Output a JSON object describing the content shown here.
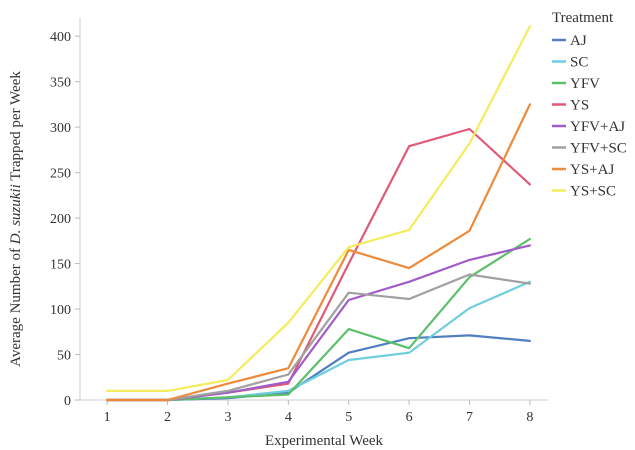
{
  "chart_data": {
    "type": "line",
    "title": "",
    "xlabel": "Experimental Week",
    "ylabel_parts": [
      "Average Number of ",
      "D. suzukii",
      " Trapped per Week"
    ],
    "x": [
      1,
      2,
      3,
      4,
      5,
      6,
      7,
      8
    ],
    "xlim": [
      0.55,
      8.3
    ],
    "ylim": [
      0,
      420
    ],
    "yticks": [
      0,
      50,
      100,
      150,
      200,
      250,
      300,
      350,
      400
    ],
    "grid": false,
    "legend": {
      "title": "Treatment",
      "placement": "right"
    },
    "series": [
      {
        "name": "AJ",
        "color": "#4f7fbf",
        "values": [
          0,
          0,
          2,
          8,
          52,
          68,
          71,
          65
        ]
      },
      {
        "name": "SC",
        "color": "#6fcde0",
        "values": [
          0,
          0,
          3,
          10,
          44,
          52,
          101,
          130
        ]
      },
      {
        "name": "YFV",
        "color": "#5cbf6a",
        "values": [
          0,
          0,
          3,
          6,
          78,
          57,
          135,
          177
        ]
      },
      {
        "name": "YS",
        "color": "#e05a78",
        "values": [
          0,
          0,
          8,
          18,
          150,
          279,
          298,
          237
        ]
      },
      {
        "name": "YFV+AJ",
        "color": "#a05cc8",
        "values": [
          0,
          0,
          8,
          20,
          110,
          130,
          154,
          170
        ]
      },
      {
        "name": "YFV+SC",
        "color": "#a0a0a0",
        "values": [
          0,
          0,
          10,
          28,
          118,
          111,
          138,
          128
        ]
      },
      {
        "name": "YS+AJ",
        "color": "#ee8a3a",
        "values": [
          0,
          0,
          18,
          35,
          165,
          145,
          186,
          325
        ]
      },
      {
        "name": "YS+SC",
        "color": "#f4ec5c",
        "values": [
          10,
          10,
          22,
          85,
          168,
          187,
          282,
          411
        ]
      }
    ]
  }
}
